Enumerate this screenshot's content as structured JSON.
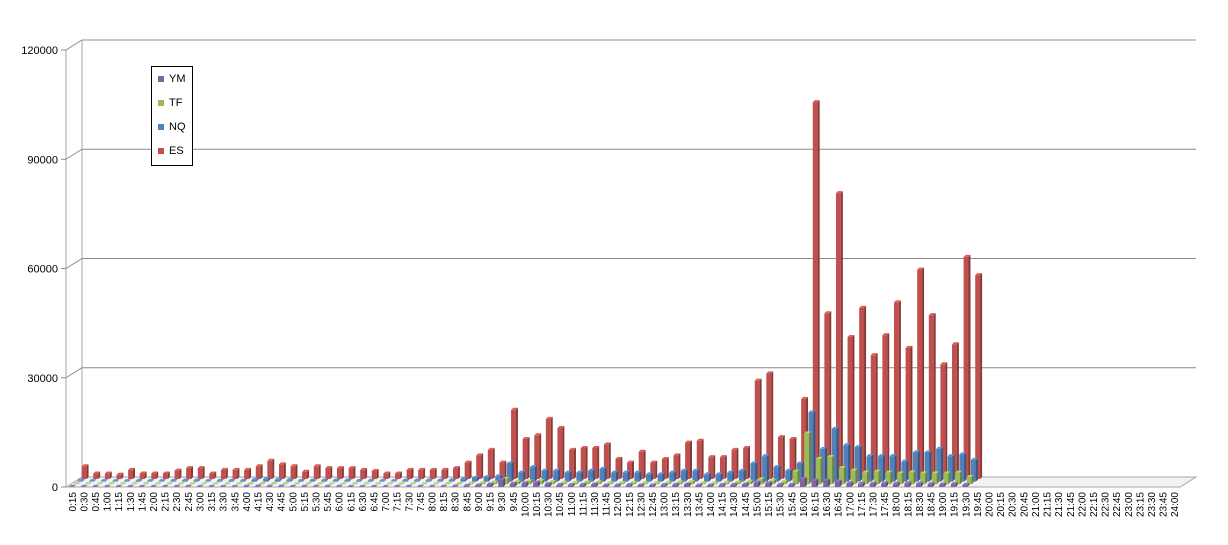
{
  "chart_data": {
    "type": "bar",
    "title": "",
    "xlabel": "",
    "ylabel": "",
    "ylim": [
      0,
      120000
    ],
    "yticks": [
      "0",
      "30000",
      "60000",
      "90000",
      "120000"
    ],
    "grid": true,
    "legend_position": "top-left",
    "categories": [
      "0:15",
      "0:30",
      "0:45",
      "1:00",
      "1:15",
      "1:30",
      "1:45",
      "2:00",
      "2:15",
      "2:30",
      "2:45",
      "3:00",
      "3:15",
      "3:30",
      "3:45",
      "4:00",
      "4:15",
      "4:30",
      "4:45",
      "5:00",
      "5:15",
      "5:30",
      "5:45",
      "6:00",
      "6:15",
      "6:30",
      "6:45",
      "7:00",
      "7:15",
      "7:30",
      "7:45",
      "8:00",
      "8:15",
      "8:30",
      "8:45",
      "9:00",
      "9:15",
      "9:30",
      "9:45",
      "10:00",
      "10:15",
      "10:30",
      "10:45",
      "11:00",
      "11:15",
      "11:30",
      "11:45",
      "12:00",
      "12:15",
      "12:30",
      "12:45",
      "13:00",
      "13:15",
      "13:30",
      "13:45",
      "14:00",
      "14:15",
      "14:30",
      "14:45",
      "15:00",
      "15:15",
      "15:30",
      "15:45",
      "16:00",
      "16:15",
      "16:30",
      "16:45",
      "17:00",
      "17:15",
      "17:30",
      "17:45",
      "18:00",
      "18:15",
      "18:30",
      "18:45",
      "19:00",
      "19:15",
      "19:30",
      "19:45",
      "20:00",
      "20:15",
      "20:30",
      "20:45",
      "21:00",
      "21:15",
      "21:30",
      "21:45",
      "22:00",
      "22:15",
      "22:30",
      "22:45",
      "23:00",
      "23:15",
      "23:30",
      "23:45",
      "24:00"
    ],
    "series": [
      {
        "name": "YM",
        "color": "#7f64a2",
        "values": [
          50,
          30,
          30,
          30,
          30,
          40,
          30,
          30,
          40,
          60,
          60,
          30,
          40,
          40,
          40,
          120,
          150,
          100,
          100,
          40,
          60,
          60,
          60,
          60,
          40,
          40,
          30,
          30,
          60,
          60,
          60,
          60,
          80,
          150,
          300,
          400,
          700,
          2000,
          900,
          1000,
          1200,
          800,
          500,
          500,
          600,
          700,
          400,
          400,
          500,
          400,
          400,
          500,
          600,
          700,
          400,
          400,
          500,
          600,
          700,
          1200,
          1000,
          600,
          600,
          2200,
          1800,
          1800,
          1500,
          1000,
          900,
          900,
          1000,
          900,
          1000,
          900,
          800,
          700,
          800,
          600,
          0,
          0,
          0,
          0,
          0,
          0,
          0,
          0,
          0,
          0,
          0,
          0,
          0,
          0,
          0,
          0,
          0,
          0
        ]
      },
      {
        "name": "TF",
        "color": "#9bbb59",
        "values": [
          30,
          20,
          20,
          20,
          20,
          30,
          20,
          20,
          30,
          40,
          40,
          20,
          30,
          30,
          30,
          80,
          100,
          80,
          70,
          30,
          40,
          40,
          40,
          40,
          30,
          30,
          20,
          20,
          40,
          40,
          40,
          40,
          60,
          100,
          200,
          300,
          500,
          1500,
          700,
          800,
          900,
          600,
          400,
          400,
          500,
          500,
          300,
          300,
          400,
          300,
          300,
          400,
          500,
          600,
          300,
          300,
          400,
          500,
          700,
          1400,
          1000,
          700,
          3500,
          14000,
          7000,
          7500,
          4500,
          3800,
          3200,
          3500,
          3200,
          3000,
          3300,
          3000,
          3000,
          3000,
          3200,
          2000,
          0,
          0,
          0,
          0,
          0,
          0,
          0,
          0,
          0,
          0,
          0,
          0,
          0,
          0,
          0,
          0,
          0,
          0
        ]
      },
      {
        "name": "NQ",
        "color": "#4f81bd",
        "values": [
          250,
          150,
          150,
          150,
          150,
          200,
          150,
          150,
          200,
          300,
          300,
          150,
          200,
          200,
          200,
          500,
          700,
          500,
          400,
          200,
          300,
          300,
          300,
          300,
          200,
          200,
          150,
          150,
          300,
          300,
          300,
          300,
          400,
          700,
          1000,
          1200,
          1500,
          5000,
          2500,
          4000,
          3000,
          3000,
          2500,
          2500,
          3000,
          3500,
          2500,
          2500,
          2500,
          2000,
          2000,
          2500,
          3000,
          3000,
          2000,
          2000,
          2500,
          3000,
          5000,
          7000,
          4000,
          3000,
          5000,
          19000,
          9000,
          14500,
          10000,
          9500,
          7000,
          7000,
          7000,
          5500,
          8000,
          8000,
          9000,
          7000,
          7500,
          6000,
          0,
          0,
          0,
          0,
          0,
          0,
          0,
          0,
          0,
          0,
          0,
          0,
          0,
          0,
          0,
          0,
          0,
          0
        ]
      },
      {
        "name": "ES",
        "color": "#c0504d",
        "values": [
          3500,
          1500,
          1500,
          1200,
          2500,
          1500,
          1500,
          1500,
          2300,
          3000,
          3000,
          1500,
          2500,
          2500,
          2500,
          3500,
          5000,
          4000,
          3500,
          2000,
          3500,
          3000,
          3000,
          3000,
          2500,
          2200,
          1500,
          1500,
          2500,
          2500,
          2500,
          2500,
          3000,
          4500,
          6500,
          8000,
          4500,
          19000,
          11000,
          12000,
          16500,
          14000,
          8000,
          8500,
          8500,
          9500,
          5500,
          4500,
          7500,
          4500,
          5500,
          6500,
          10000,
          10500,
          6000,
          6000,
          8000,
          8500,
          27000,
          29000,
          11500,
          11000,
          22000,
          103500,
          45500,
          78500,
          39000,
          47000,
          34000,
          39500,
          48500,
          36000,
          57500,
          45000,
          31500,
          37000,
          61000,
          56000,
          0,
          0,
          0,
          0,
          0,
          0,
          0,
          0,
          0,
          0,
          0,
          0,
          0,
          0,
          0,
          0,
          0,
          0
        ]
      }
    ]
  }
}
